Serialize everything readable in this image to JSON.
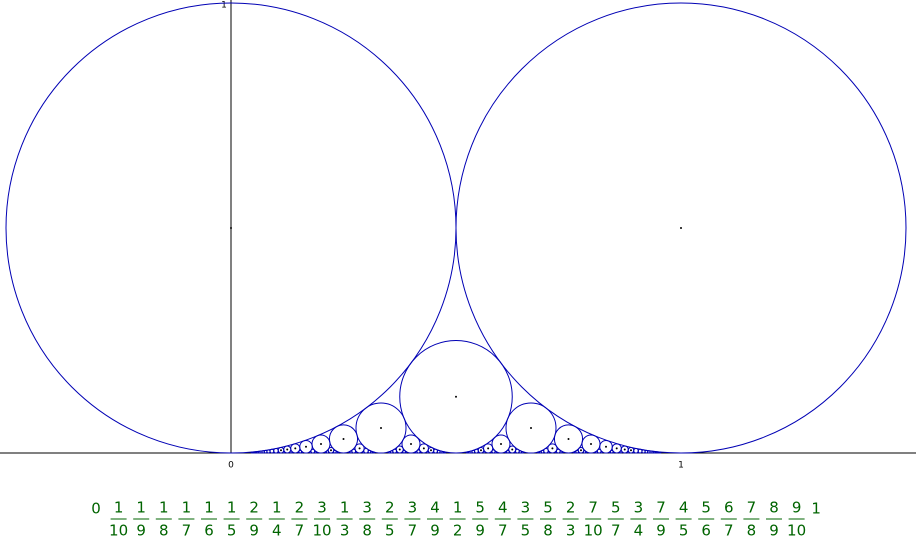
{
  "axes": {
    "x_labels": [
      "0",
      "1"
    ],
    "y_label": "1"
  },
  "fraction_row": {
    "start": "0",
    "end": "1",
    "fractions": [
      {
        "num": "1",
        "den": "10"
      },
      {
        "num": "1",
        "den": "9"
      },
      {
        "num": "1",
        "den": "8"
      },
      {
        "num": "1",
        "den": "7"
      },
      {
        "num": "1",
        "den": "6"
      },
      {
        "num": "1",
        "den": "5"
      },
      {
        "num": "2",
        "den": "9"
      },
      {
        "num": "1",
        "den": "4"
      },
      {
        "num": "2",
        "den": "7"
      },
      {
        "num": "3",
        "den": "10"
      },
      {
        "num": "1",
        "den": "3"
      },
      {
        "num": "3",
        "den": "8"
      },
      {
        "num": "2",
        "den": "5"
      },
      {
        "num": "3",
        "den": "7"
      },
      {
        "num": "4",
        "den": "9"
      },
      {
        "num": "1",
        "den": "2"
      },
      {
        "num": "5",
        "den": "9"
      },
      {
        "num": "4",
        "den": "7"
      },
      {
        "num": "3",
        "den": "5"
      },
      {
        "num": "5",
        "den": "8"
      },
      {
        "num": "2",
        "den": "3"
      },
      {
        "num": "7",
        "den": "10"
      },
      {
        "num": "5",
        "den": "7"
      },
      {
        "num": "3",
        "den": "4"
      },
      {
        "num": "7",
        "den": "9"
      },
      {
        "num": "4",
        "den": "5"
      },
      {
        "num": "5",
        "den": "6"
      },
      {
        "num": "6",
        "den": "7"
      },
      {
        "num": "7",
        "den": "8"
      },
      {
        "num": "8",
        "den": "9"
      },
      {
        "num": "9",
        "den": "10"
      }
    ]
  }
}
